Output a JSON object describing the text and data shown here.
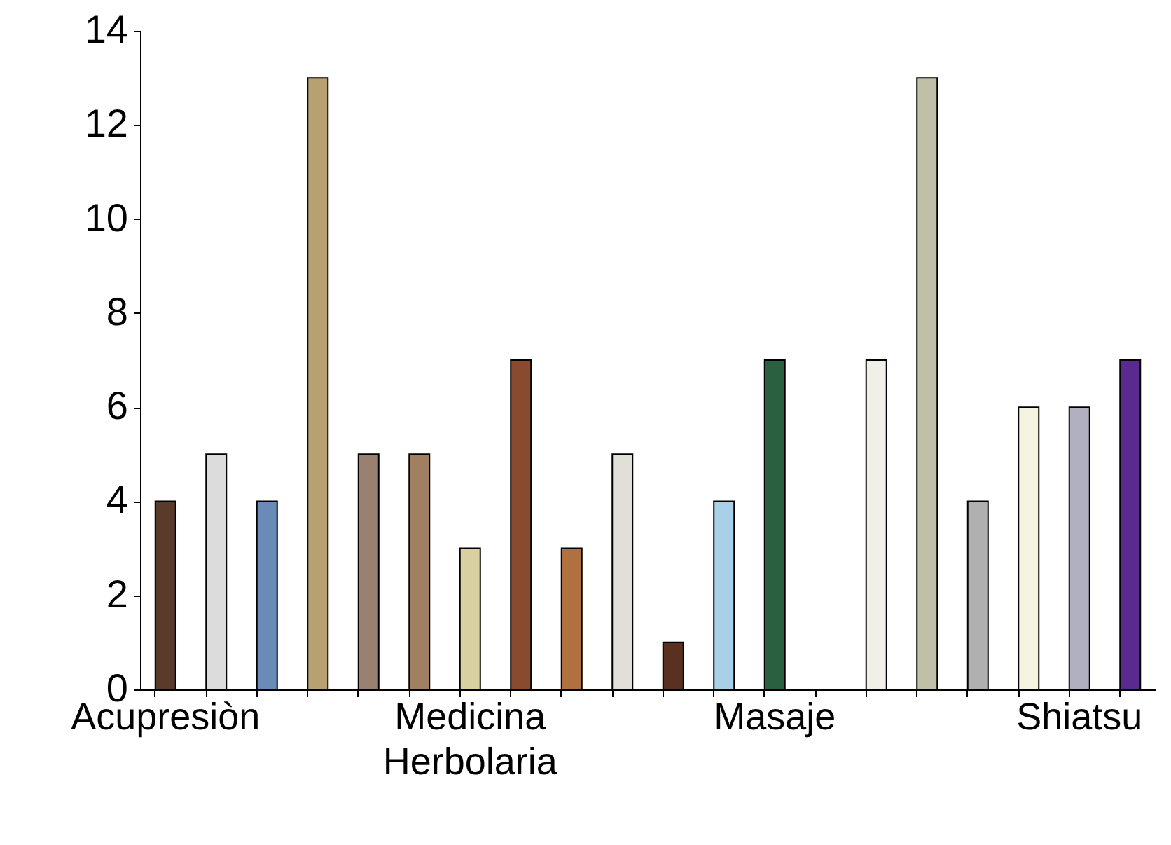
{
  "chart_data": {
    "type": "bar",
    "categories": [
      "Acupresiòn",
      null,
      null,
      null,
      null,
      null,
      "Medicina Herbolaria",
      null,
      null,
      null,
      null,
      null,
      "Masaje",
      null,
      null,
      null,
      null,
      null,
      "Shiatsu",
      null
    ],
    "values": [
      4,
      5,
      4,
      13,
      5,
      5,
      3,
      7,
      3,
      5,
      1,
      4,
      7,
      0,
      7,
      13,
      4,
      6,
      6,
      7
    ],
    "colors": [
      "#5a3a2a",
      "#dcdcdc",
      "#6a8ab8",
      "#b8a070",
      "#9a8070",
      "#a08060",
      "#d8d0a0",
      "#8a4a30",
      "#b07040",
      "#e0e0d8",
      "#5a3020",
      "#a8d0e8",
      "#2a6040",
      "#a0a0a0",
      "#f0f0e8",
      "#c0c0a8",
      "#b0b0b0",
      "#f4f4e0",
      "#b0b0c0",
      "#5a2a90"
    ],
    "ylim": [
      0,
      14
    ],
    "yticks": [
      0,
      2,
      4,
      6,
      8,
      10,
      12,
      14
    ],
    "grid": false
  }
}
